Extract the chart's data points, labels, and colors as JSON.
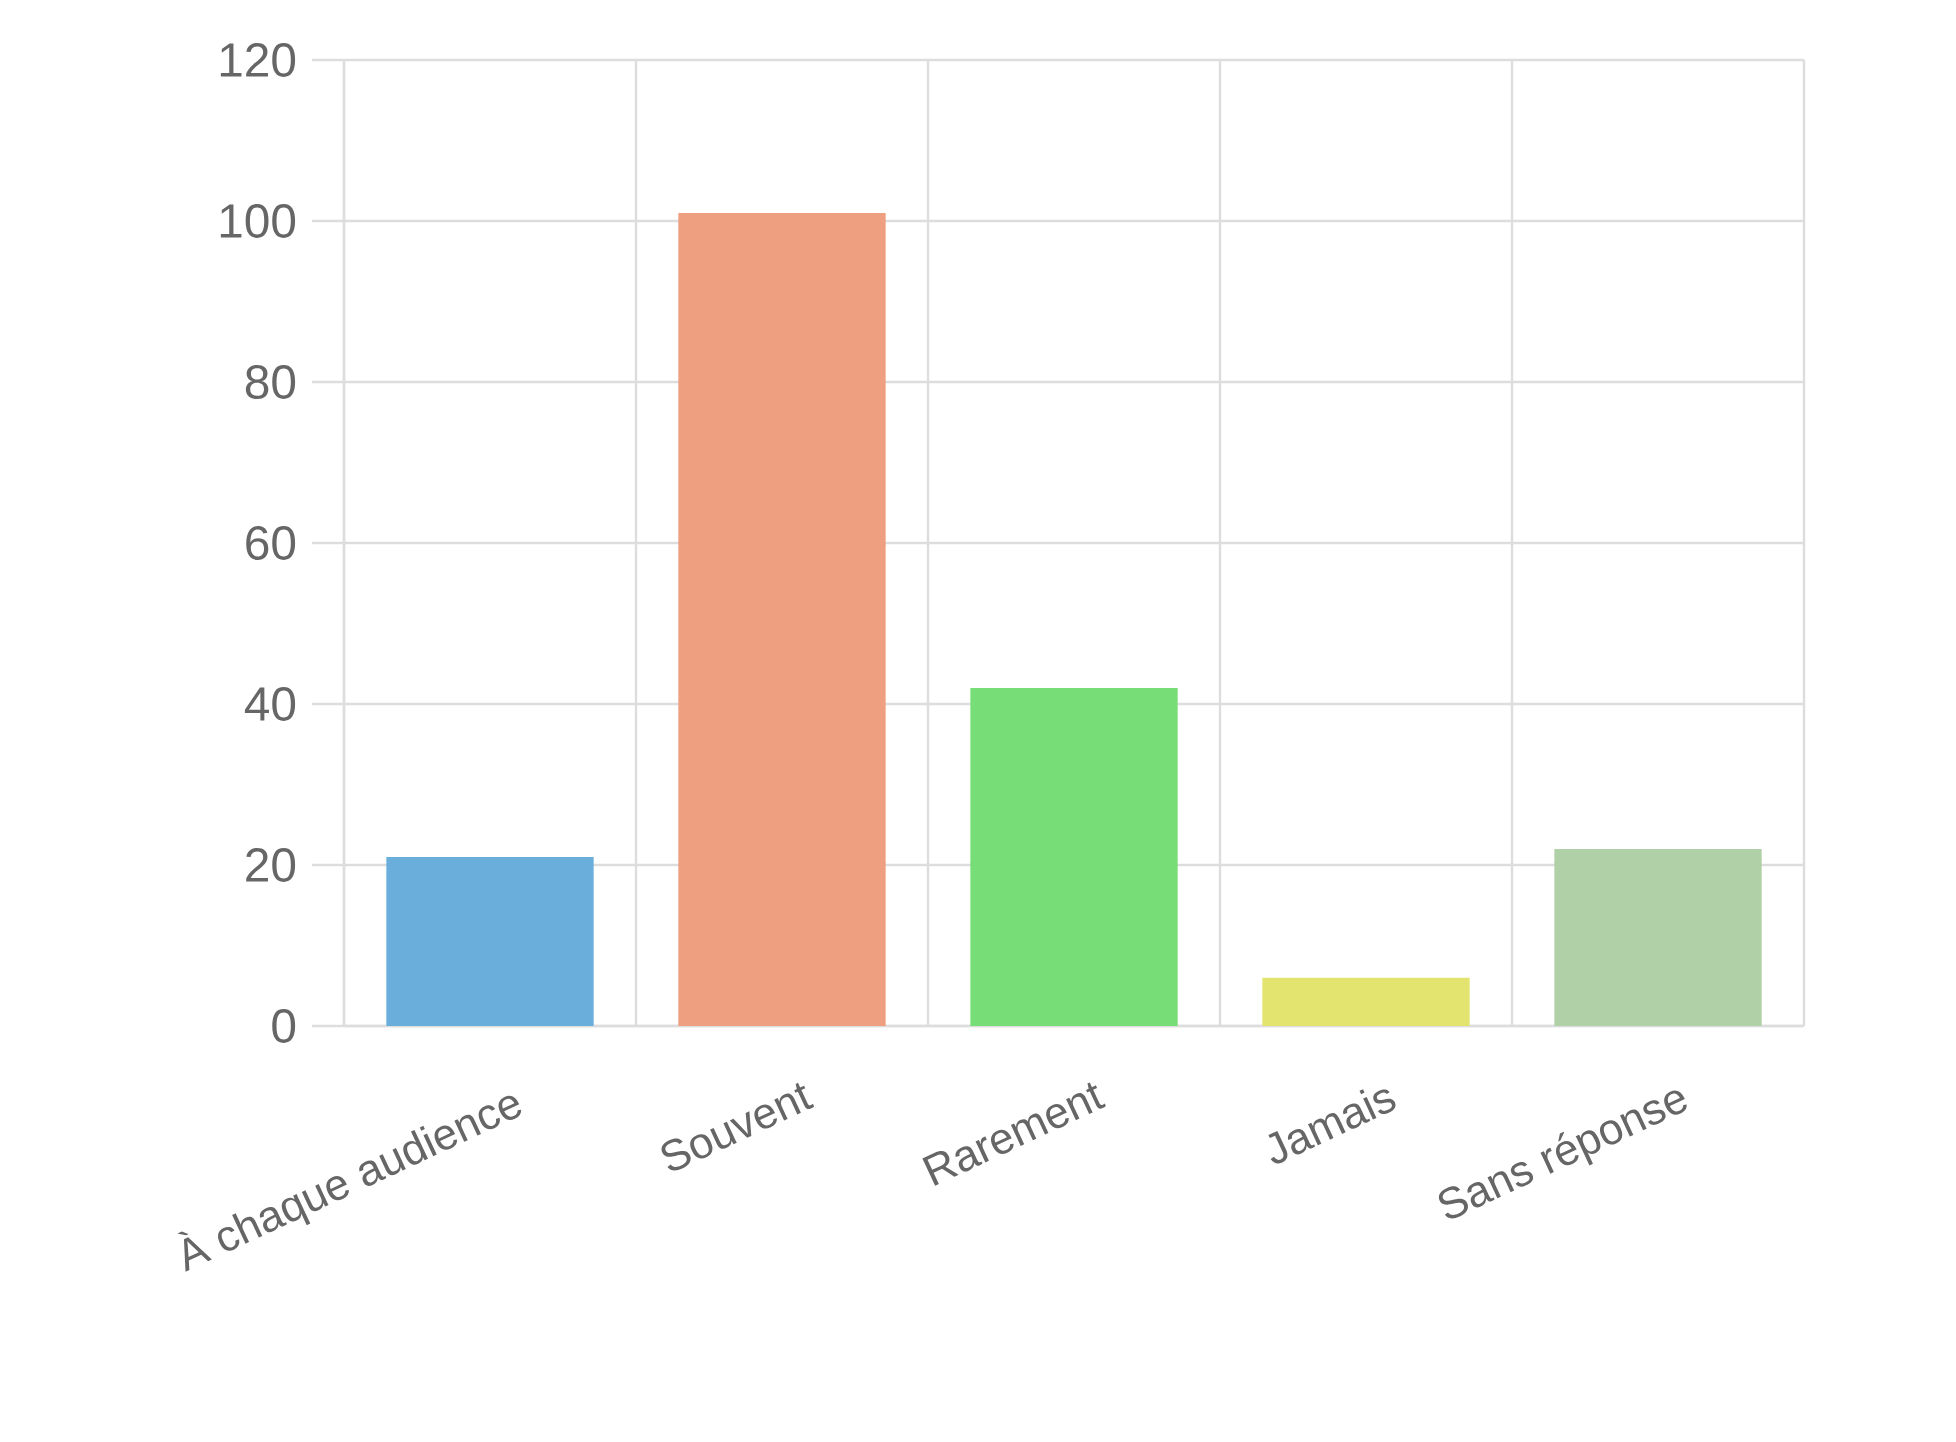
{
  "chart_data": {
    "type": "bar",
    "categories": [
      "À chaque audience",
      "Souvent",
      "Rarement",
      "Jamais",
      "Sans réponse"
    ],
    "values": [
      21,
      101,
      42,
      6,
      22
    ],
    "colors": [
      "#6aafdc",
      "#ee9f80",
      "#77dd77",
      "#e3e36f",
      "#b0d0a8"
    ],
    "ylim": [
      0,
      120
    ],
    "yticks": [
      0,
      20,
      40,
      60,
      80,
      100,
      120
    ],
    "grid": true
  }
}
